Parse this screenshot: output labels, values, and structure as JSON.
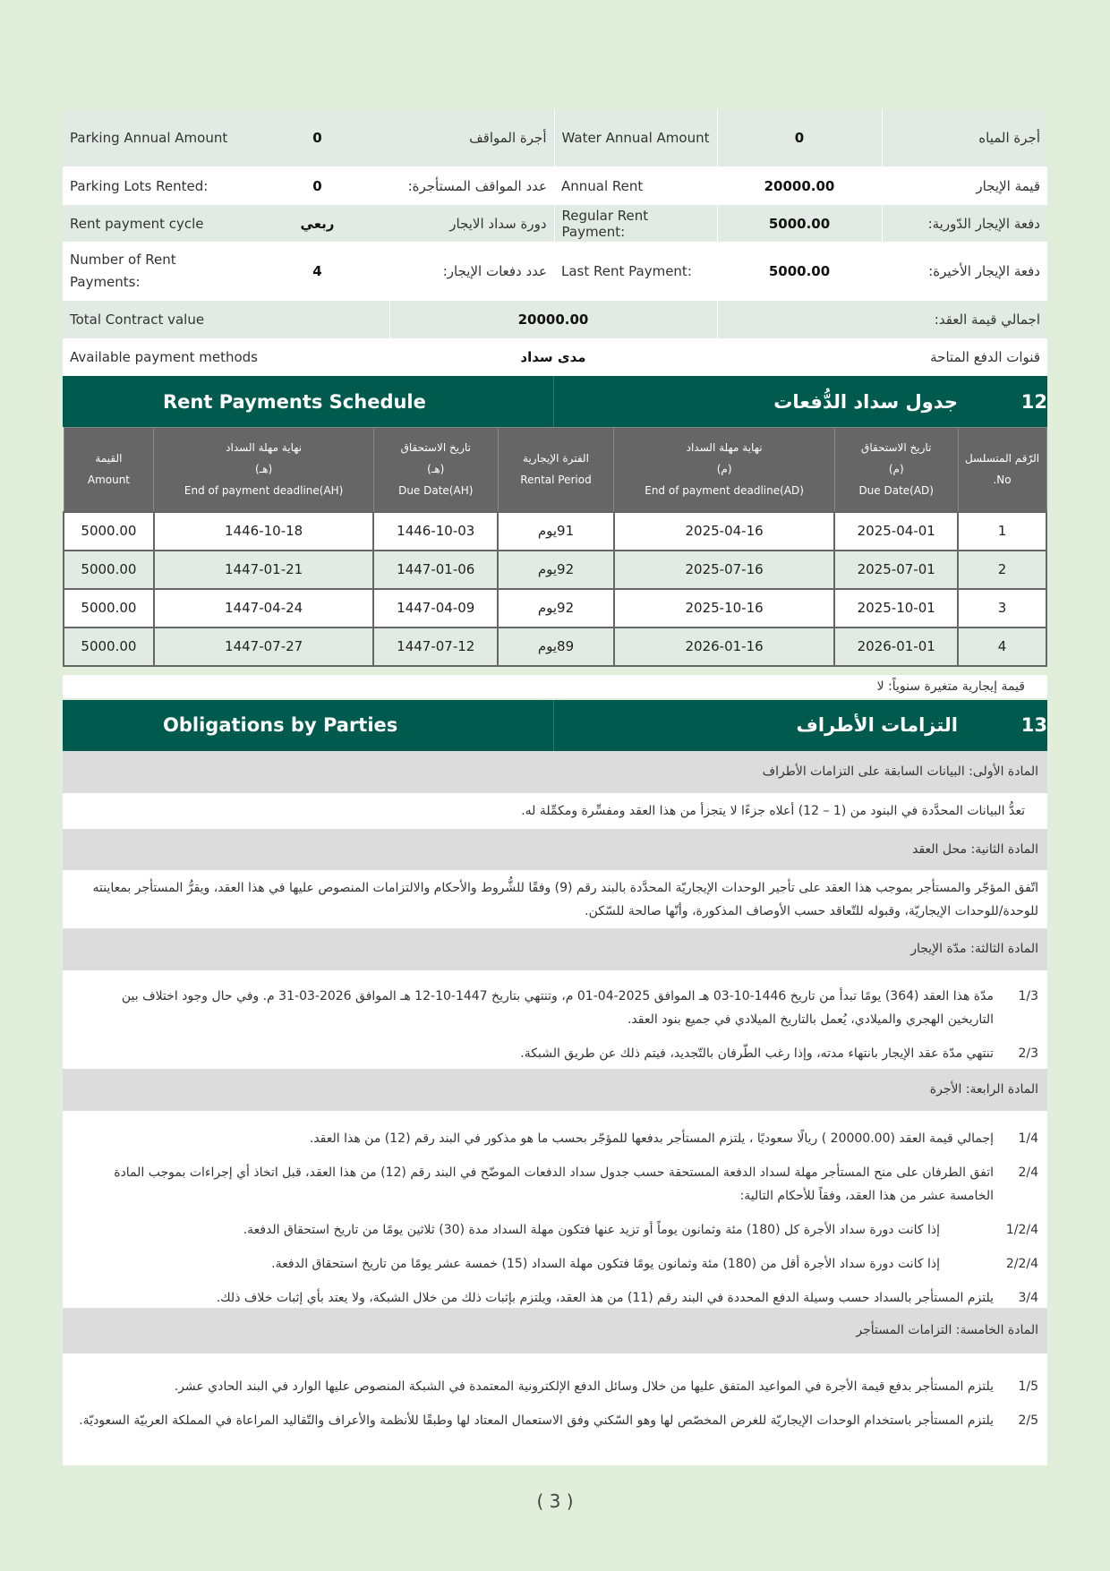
{
  "info": {
    "rows": [
      {
        "en1": "Parking Annual Amount",
        "v1": "0",
        "ar1": "أجرة المواقف",
        "en2": "Water Annual Amount",
        "v2": "0",
        "ar2": "أجرة المياه"
      },
      {
        "en1": "Parking Lots Rented:",
        "v1": "0",
        "ar1": "عدد المواقف المستأجرة:",
        "en2": "Annual Rent",
        "v2": "20000.00",
        "ar2": "قيمة الإيجار"
      },
      {
        "en1": "Rent payment cycle",
        "v1": "ربعي",
        "ar1": "دورة سداد الايجار",
        "en2": "Regular Rent Payment:",
        "v2": "5000.00",
        "ar2": "دفعة الإيجار الدّورية:"
      },
      {
        "en1": "Number of Rent Payments:",
        "v1": "4",
        "ar1": "عدد دفعات الإيجار:",
        "en2": "Last Rent Payment:",
        "v2": "5000.00",
        "ar2": "دفعة الإيجار الأخيرة:"
      }
    ],
    "total": {
      "en": "Total Contract value",
      "v": "20000.00",
      "ar": "اجمالي قيمة العقد:"
    },
    "methods": {
      "en": "Available payment methods",
      "v": "مدى سداد",
      "ar": "قنوات الدفع المتاحة"
    }
  },
  "section12": {
    "en": "Rent Payments Schedule",
    "ar": "جدول سداد الدُّفعات",
    "num": "12"
  },
  "schedule": {
    "headers": [
      [
        "القيمة",
        "Amount"
      ],
      [
        "نهاية مهلة السداد",
        "(هـ)",
        "End of payment deadline(AH)"
      ],
      [
        "تاريخ الاستحقاق",
        "(هـ)",
        "Due Date(AH)"
      ],
      [
        "الفترة الإيجارية",
        "Rental Period"
      ],
      [
        "نهاية مهلة السداد",
        "(م)",
        "End of payment deadline(AD)"
      ],
      [
        "تاريخ الاستحقاق",
        "(م)",
        "Due Date(AD)"
      ],
      [
        "الرّقم المتسلسل",
        ".No"
      ]
    ],
    "rows": [
      [
        "5000.00",
        "1446-10-18",
        "1446-10-03",
        "91يوم",
        "2025-04-16",
        "2025-04-01",
        "1"
      ],
      [
        "5000.00",
        "1447-01-21",
        "1447-01-06",
        "92يوم",
        "2025-07-16",
        "2025-07-01",
        "2"
      ],
      [
        "5000.00",
        "1447-04-24",
        "1447-04-09",
        "92يوم",
        "2025-10-16",
        "2025-10-01",
        "3"
      ],
      [
        "5000.00",
        "1447-07-27",
        "1447-07-12",
        "89يوم",
        "2026-01-16",
        "2026-01-01",
        "4"
      ]
    ],
    "note": "قيمة إيجارية متغيرة سنوياً: لا"
  },
  "section13": {
    "en": "Obligations by Parties",
    "ar": "التزامات الأطراف",
    "num": "13"
  },
  "articles": {
    "a1": {
      "title": "المادة الأولى: البيانات السابقة على التزامات الأطراف",
      "text": "تعدُّ البيانات المحدَّدة في البنود من (1 – 12) أعلاه جزءًا لا يتجزأ من هذا العقد ومفسِّرة ومكمِّلة له."
    },
    "a2": {
      "title": "المادة الثانية: محل العقد",
      "text": "اتّفق المؤجّر والمستأجر بموجب هذا العقد على تأجير الوحدات الإيجاريّة المحدَّدة بالبند رقم (9) وفقًا للشُّروط والأحكام والالتزامات المنصوص عليها في هذا العقد، ويقرُّ المستأجر بمعاينته للوحدة/للوحدات الإيجاريّة، وقبوله للتّعاقد حسب الأوصاف المذكورة، وأنّها صالحة للسّكن."
    },
    "a3": {
      "title": "المادة الثالثة: مدّة الإيجار",
      "items": [
        {
          "n": "1/3",
          "t": "مدّة هذا العقد (364) يومًا تبدأ من تاريخ 1446-10-03 هـ الموافق 2025-04-01 م، وتنتهي بتاريخ 1447-10-12 هـ الموافق 2026-03-31 م. وفي حال وجود اختلاف بين التاريخين الهجري والميلادي، يُعمل بالتاريخ الميلادي في جميع بنود العقد."
        },
        {
          "n": "2/3",
          "t": "تنتهي مدّة عقد الإيجار بانتهاء مدته، وإذا رغب الطّرفان بالتّجديد، فيتم ذلك عن طريق الشبكة."
        }
      ]
    },
    "a4": {
      "title": "المادة الرابعة: الأجرة",
      "items": [
        {
          "n": "1/4",
          "t": "إجمالي قيمة العقد (20000.00 ) ريالًا سعوديًا ، يلتزم المستأجر بدفعها للمؤجّر بحسب ما هو مذكور في البند رقم (12) من هذا العقد."
        },
        {
          "n": "2/4",
          "t": "اتفق الطرفان على منح المستأجر مهلة لسداد الدفعة المستحقة حسب جدول سداد الدفعات الموضّح في البند رقم (12) من هذا العقد، قبل اتخاذ أي إجراءات بموجب المادة الخامسة عشر من هذا العقد، وفقاً للأحكام التالية:"
        },
        {
          "n": "1/2/4",
          "t": "إذا كانت دورة سداد الأجرة كل (180) مئة وثمانون يوماً أو تزيد عنها فتكون مهلة السداد مدة (30) ثلاثين يومًا من تاريخ استحقاق الدفعة.",
          "sub": true
        },
        {
          "n": "2/2/4",
          "t": "إذا كانت دورة سداد الأجرة أقل من (180) مئة وثمانون يومًا فتكون مهلة السداد (15) خمسة عشر يومًا من تاريخ استحقاق الدفعة.",
          "sub": true
        },
        {
          "n": "3/4",
          "t": "يلتزم المستأجر بالسداد حسب وسيلة الدفع المحددة في البند رقم (11) من هذ العقد، ويلتزم بإثبات ذلك من خلال الشبكة، ولا يعتد بأي إثبات خلاف ذلك."
        }
      ]
    },
    "a5": {
      "title": "المادة الخامسة: التزامات المستأجر",
      "items": [
        {
          "n": "1/5",
          "t": "يلتزم المستأجر بدفع قيمة الأجرة في المواعيد المتفق عليها من خلال وسائل الدفع الإلكترونية المعتمدة في الشبكة المنصوص عليها الوارد في البند الحادي عشر."
        },
        {
          "n": "2/5",
          "t": "يلتزم المستأجر باستخدام الوحدات الإيجاريّة للغرض المخصّص لها وهو السّكني وفق الاستعمال المعتاد لها وطبقًا للأنظمة والأعراف والتّقاليد المراعاة في المملكة العربيّة السعوديّة."
        }
      ]
    }
  },
  "page_number": "( 3 )",
  "colors": {
    "header_green": "#005a4e",
    "page_bg": "#e1eed9",
    "table_header_gray": "#666666"
  }
}
